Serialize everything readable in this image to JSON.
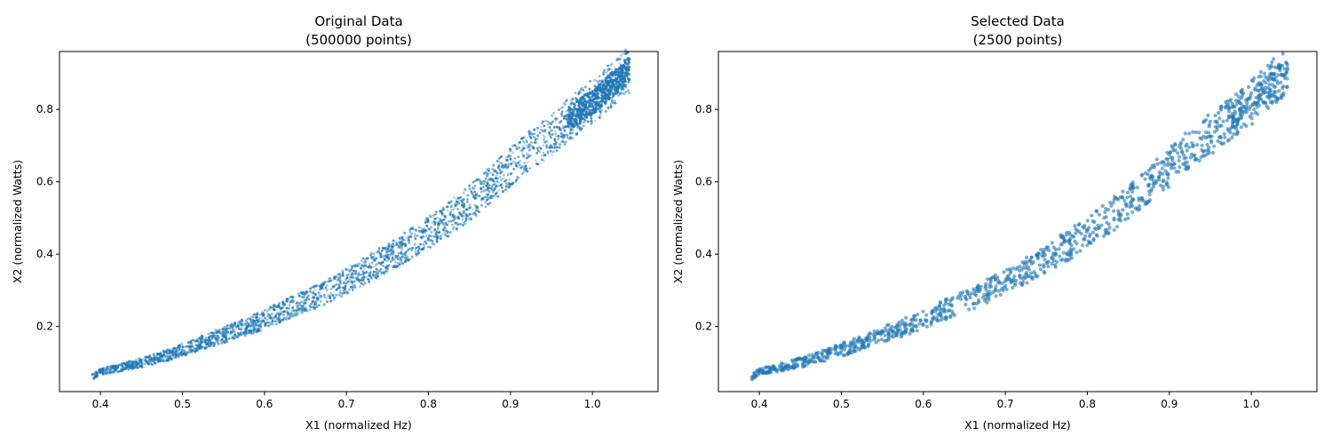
{
  "chart_data": [
    {
      "type": "scatter",
      "title_line1": "Original Data",
      "title_line2": "(500000 points)",
      "xlabel": "X1 (normalized Hz)",
      "ylabel": "X2 (normalized Watts)",
      "xlim": [
        0.35,
        1.08
      ],
      "ylim": [
        0.02,
        0.96
      ],
      "xticks": [
        "0.4",
        "0.5",
        "0.6",
        "0.7",
        "0.8",
        "0.9",
        "1.0"
      ],
      "yticks": [
        "0.2",
        "0.4",
        "0.6",
        "0.8"
      ],
      "grid": false,
      "point_count": 500000,
      "color": "#1f77b4",
      "series": [
        {
          "x": [
            0.39,
            0.4,
            0.42,
            0.45,
            0.48,
            0.5,
            0.53,
            0.56,
            0.58,
            0.6,
            0.63,
            0.66,
            0.68,
            0.7,
            0.72,
            0.75,
            0.78,
            0.8,
            0.82,
            0.85,
            0.88,
            0.9,
            0.92,
            0.95,
            0.97,
            1.0,
            1.02,
            1.03,
            1.045
          ],
          "y": [
            0.06,
            0.075,
            0.085,
            0.1,
            0.12,
            0.135,
            0.16,
            0.185,
            0.2,
            0.22,
            0.25,
            0.28,
            0.3,
            0.325,
            0.35,
            0.39,
            0.43,
            0.46,
            0.49,
            0.54,
            0.6,
            0.64,
            0.68,
            0.73,
            0.77,
            0.82,
            0.86,
            0.88,
            0.91
          ]
        }
      ]
    },
    {
      "type": "scatter",
      "title_line1": "Selected Data",
      "title_line2": "(2500 points)",
      "xlabel": "X1 (normalized Hz)",
      "ylabel": "X2 (normalized Watts)",
      "xlim": [
        0.35,
        1.08
      ],
      "ylim": [
        0.02,
        0.96
      ],
      "xticks": [
        "0.4",
        "0.5",
        "0.6",
        "0.7",
        "0.8",
        "0.9",
        "1.0"
      ],
      "yticks": [
        "0.2",
        "0.4",
        "0.6",
        "0.8"
      ],
      "grid": false,
      "point_count": 2500,
      "color": "#1f77b4",
      "series": [
        {
          "x": [
            0.39,
            0.4,
            0.42,
            0.45,
            0.48,
            0.5,
            0.53,
            0.56,
            0.58,
            0.6,
            0.63,
            0.66,
            0.68,
            0.7,
            0.72,
            0.75,
            0.78,
            0.8,
            0.82,
            0.85,
            0.88,
            0.9,
            0.92,
            0.95,
            0.97,
            1.0,
            1.02,
            1.03,
            1.045
          ],
          "y": [
            0.06,
            0.075,
            0.085,
            0.1,
            0.12,
            0.135,
            0.16,
            0.185,
            0.2,
            0.22,
            0.25,
            0.28,
            0.3,
            0.325,
            0.35,
            0.39,
            0.43,
            0.46,
            0.49,
            0.54,
            0.6,
            0.64,
            0.68,
            0.73,
            0.77,
            0.82,
            0.86,
            0.88,
            0.91
          ]
        }
      ]
    }
  ]
}
